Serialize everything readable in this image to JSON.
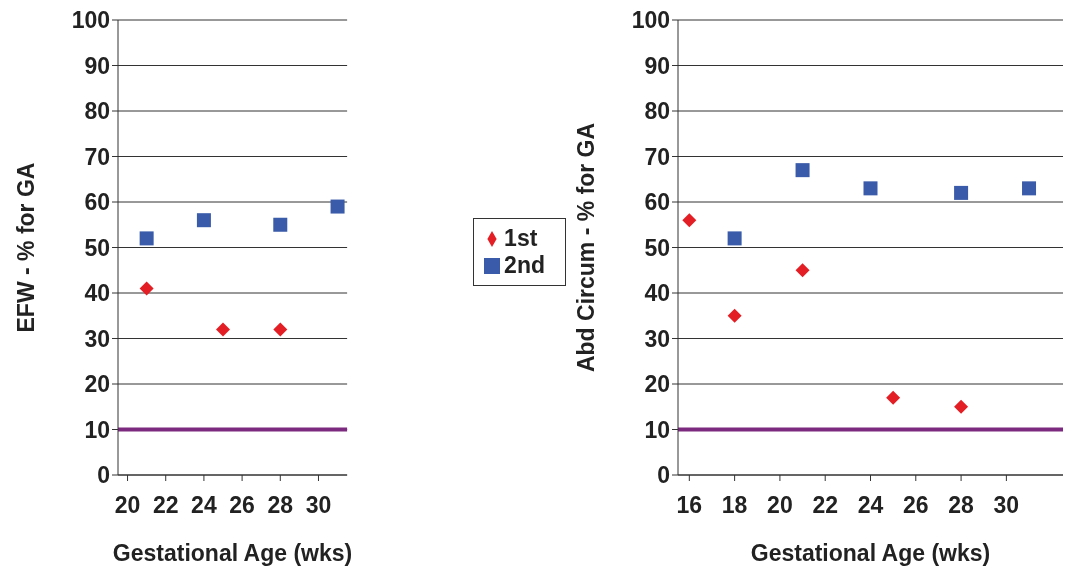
{
  "chart_data": [
    {
      "type": "scatter",
      "xlabel": "Gestational Age (wks)",
      "ylabel": "EFW - % for GA",
      "xlim": [
        19.5,
        31.5
      ],
      "xticks": [
        20,
        22,
        24,
        26,
        28,
        30
      ],
      "ylim": [
        0,
        100
      ],
      "yticks": [
        0,
        10,
        20,
        30,
        40,
        50,
        60,
        70,
        80,
        90,
        100
      ],
      "grid": "y",
      "legend": "right",
      "series": [
        {
          "name": "1st",
          "color": "#e31e24",
          "marker": "diamond",
          "x": [
            21,
            25,
            28
          ],
          "values": [
            41,
            32,
            32
          ]
        },
        {
          "name": "2nd",
          "color": "#3a5ba9",
          "marker": "square",
          "x": [
            21,
            24,
            28,
            31
          ],
          "values": [
            52,
            56,
            55,
            59
          ]
        }
      ],
      "ref_lines": [
        {
          "axis": "y",
          "value": 10,
          "color": "#7b2a7f"
        }
      ]
    },
    {
      "type": "scatter",
      "xlabel": "Gestational Age (wks)",
      "ylabel": "Abd Circum - % for GA",
      "xlim": [
        15.5,
        32.5
      ],
      "xticks": [
        16,
        18,
        20,
        22,
        24,
        26,
        28,
        30
      ],
      "ylim": [
        0,
        100
      ],
      "yticks": [
        0,
        10,
        20,
        30,
        40,
        50,
        60,
        70,
        80,
        90,
        100
      ],
      "grid": "y",
      "series": [
        {
          "color": "#e31e24",
          "marker": "diamond",
          "x": [
            16,
            18,
            21,
            25,
            28
          ],
          "values": [
            56,
            35,
            45,
            17,
            15
          ]
        },
        {
          "color": "#3a5ba9",
          "marker": "square",
          "x": [
            18,
            21,
            24,
            28,
            31
          ],
          "values": [
            52,
            67,
            63,
            62,
            63
          ]
        }
      ],
      "ref_lines": [
        {
          "axis": "y",
          "value": 10,
          "color": "#7b2a7f"
        }
      ]
    }
  ]
}
